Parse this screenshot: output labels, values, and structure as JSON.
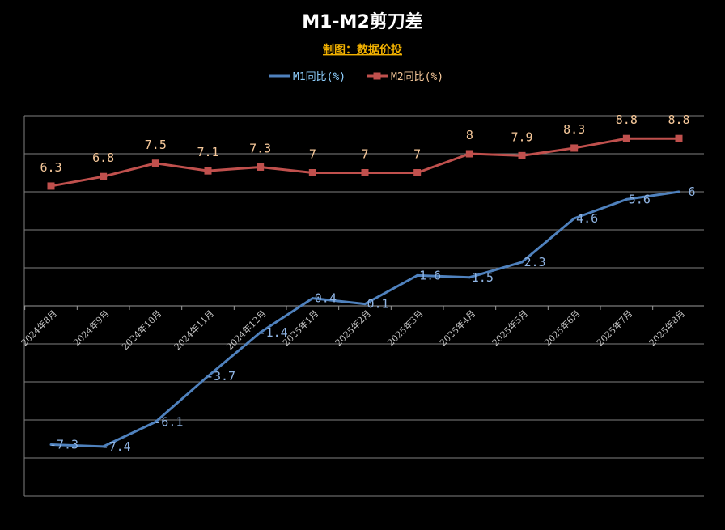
{
  "chart_data": {
    "type": "line",
    "title": "M1-M2剪刀差",
    "subtitle": "制图：数据价投",
    "categories": [
      "2024年8月",
      "2024年9月",
      "2024年10月",
      "2024年11月",
      "2024年12月",
      "2025年1月",
      "2025年2月",
      "2025年3月",
      "2025年4月",
      "2025年5月",
      "2025年6月",
      "2025年7月",
      "2025年8月"
    ],
    "series": [
      {
        "name": "M1同比(%)",
        "color": "#4f81bd",
        "values": [
          -7.3,
          -7.4,
          -6.1,
          -3.7,
          -1.4,
          0.4,
          0.1,
          1.6,
          1.5,
          2.3,
          4.6,
          5.6,
          6
        ],
        "labels": [
          "-7.3",
          "-7.4",
          "-6.1",
          "-3.7",
          "-1.4",
          "0.4",
          "0.1",
          "1.6",
          "1.5",
          "2.3",
          "4.6",
          "5.6",
          "6"
        ]
      },
      {
        "name": "M2同比(%)",
        "color": "#c0504d",
        "values": [
          6.3,
          6.8,
          7.5,
          7.1,
          7.3,
          7,
          7,
          7,
          8,
          7.9,
          8.3,
          8.8,
          8.8
        ],
        "labels": [
          "6.3",
          "6.8",
          "7.5",
          "7.1",
          "7.3",
          "7",
          "7",
          "7",
          "8",
          "7.9",
          "8.3",
          "8.8",
          "8.8"
        ]
      }
    ],
    "xlabel": "",
    "ylabel": "",
    "ylim": [
      -10,
      10
    ],
    "grid": true,
    "legend": "top-center",
    "y_tick_labels_shown": false
  }
}
